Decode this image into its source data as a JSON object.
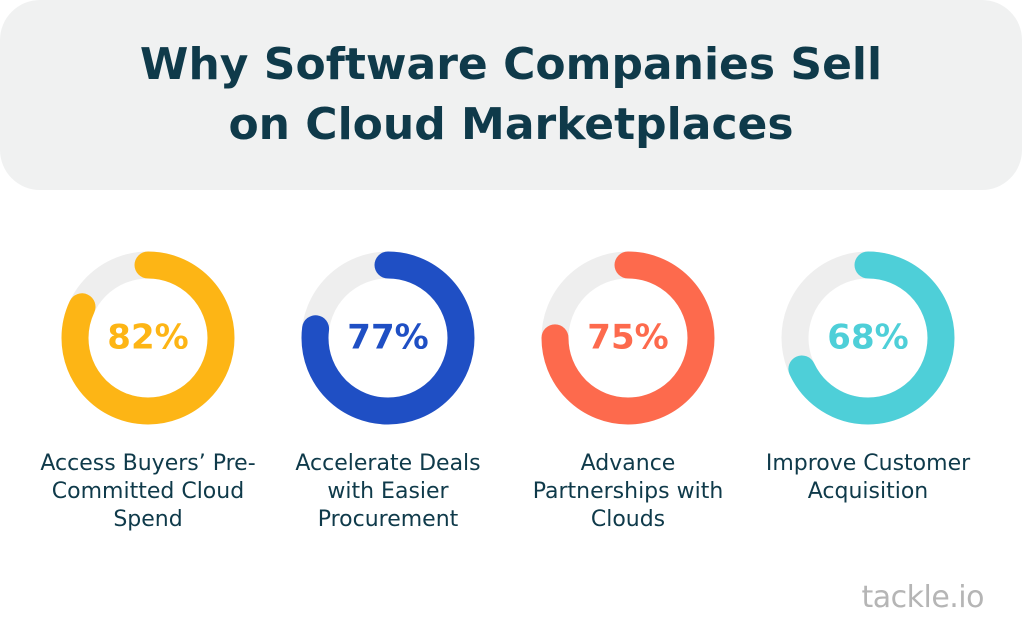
{
  "title": "Why Software Companies Sell on Cloud Marketplaces",
  "logo": "tackle.io",
  "chart_data": [
    {
      "type": "donut",
      "title": "Access Buyers’ Pre-Committed Cloud Spend",
      "values": [
        82
      ],
      "value_labels": [
        "82%"
      ],
      "color": "#fdb515",
      "ylim": [
        0,
        100
      ]
    },
    {
      "type": "donut",
      "title": "Accelerate Deals with Easier Procurement",
      "values": [
        77
      ],
      "value_labels": [
        "77%"
      ],
      "color": "#1f4fc4",
      "ylim": [
        0,
        100
      ]
    },
    {
      "type": "donut",
      "title": "Advance Partnerships with Clouds",
      "values": [
        75
      ],
      "value_labels": [
        "75%"
      ],
      "color": "#fd6a4d",
      "ylim": [
        0,
        100
      ]
    },
    {
      "type": "donut",
      "title": "Improve Customer Acquisition",
      "values": [
        68
      ],
      "value_labels": [
        "68%"
      ],
      "color": "#4ecfd8",
      "ylim": [
        0,
        100
      ]
    }
  ]
}
